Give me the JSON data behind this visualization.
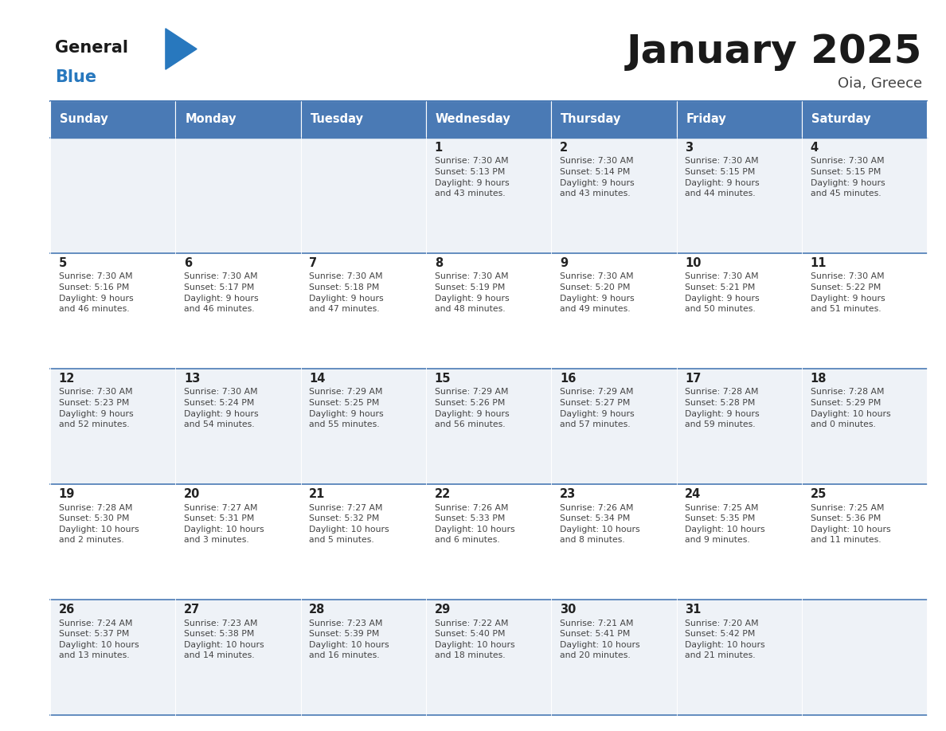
{
  "title": "January 2025",
  "subtitle": "Oia, Greece",
  "days_of_week": [
    "Sunday",
    "Monday",
    "Tuesday",
    "Wednesday",
    "Thursday",
    "Friday",
    "Saturday"
  ],
  "header_bg": "#4a7ab5",
  "header_text": "#ffffff",
  "cell_bg_odd": "#eef2f7",
  "cell_bg_even": "#ffffff",
  "border_color": "#4a7ab5",
  "title_color": "#1a1a1a",
  "subtitle_color": "#444444",
  "day_num_color": "#222222",
  "cell_text_color": "#444444",
  "logo_black": "#1a1a1a",
  "logo_blue": "#2878be",
  "triangle_color": "#2878be",
  "weeks": [
    [
      {
        "day": null,
        "info": null
      },
      {
        "day": null,
        "info": null
      },
      {
        "day": null,
        "info": null
      },
      {
        "day": 1,
        "info": "Sunrise: 7:30 AM\nSunset: 5:13 PM\nDaylight: 9 hours\nand 43 minutes."
      },
      {
        "day": 2,
        "info": "Sunrise: 7:30 AM\nSunset: 5:14 PM\nDaylight: 9 hours\nand 43 minutes."
      },
      {
        "day": 3,
        "info": "Sunrise: 7:30 AM\nSunset: 5:15 PM\nDaylight: 9 hours\nand 44 minutes."
      },
      {
        "day": 4,
        "info": "Sunrise: 7:30 AM\nSunset: 5:15 PM\nDaylight: 9 hours\nand 45 minutes."
      }
    ],
    [
      {
        "day": 5,
        "info": "Sunrise: 7:30 AM\nSunset: 5:16 PM\nDaylight: 9 hours\nand 46 minutes."
      },
      {
        "day": 6,
        "info": "Sunrise: 7:30 AM\nSunset: 5:17 PM\nDaylight: 9 hours\nand 46 minutes."
      },
      {
        "day": 7,
        "info": "Sunrise: 7:30 AM\nSunset: 5:18 PM\nDaylight: 9 hours\nand 47 minutes."
      },
      {
        "day": 8,
        "info": "Sunrise: 7:30 AM\nSunset: 5:19 PM\nDaylight: 9 hours\nand 48 minutes."
      },
      {
        "day": 9,
        "info": "Sunrise: 7:30 AM\nSunset: 5:20 PM\nDaylight: 9 hours\nand 49 minutes."
      },
      {
        "day": 10,
        "info": "Sunrise: 7:30 AM\nSunset: 5:21 PM\nDaylight: 9 hours\nand 50 minutes."
      },
      {
        "day": 11,
        "info": "Sunrise: 7:30 AM\nSunset: 5:22 PM\nDaylight: 9 hours\nand 51 minutes."
      }
    ],
    [
      {
        "day": 12,
        "info": "Sunrise: 7:30 AM\nSunset: 5:23 PM\nDaylight: 9 hours\nand 52 minutes."
      },
      {
        "day": 13,
        "info": "Sunrise: 7:30 AM\nSunset: 5:24 PM\nDaylight: 9 hours\nand 54 minutes."
      },
      {
        "day": 14,
        "info": "Sunrise: 7:29 AM\nSunset: 5:25 PM\nDaylight: 9 hours\nand 55 minutes."
      },
      {
        "day": 15,
        "info": "Sunrise: 7:29 AM\nSunset: 5:26 PM\nDaylight: 9 hours\nand 56 minutes."
      },
      {
        "day": 16,
        "info": "Sunrise: 7:29 AM\nSunset: 5:27 PM\nDaylight: 9 hours\nand 57 minutes."
      },
      {
        "day": 17,
        "info": "Sunrise: 7:28 AM\nSunset: 5:28 PM\nDaylight: 9 hours\nand 59 minutes."
      },
      {
        "day": 18,
        "info": "Sunrise: 7:28 AM\nSunset: 5:29 PM\nDaylight: 10 hours\nand 0 minutes."
      }
    ],
    [
      {
        "day": 19,
        "info": "Sunrise: 7:28 AM\nSunset: 5:30 PM\nDaylight: 10 hours\nand 2 minutes."
      },
      {
        "day": 20,
        "info": "Sunrise: 7:27 AM\nSunset: 5:31 PM\nDaylight: 10 hours\nand 3 minutes."
      },
      {
        "day": 21,
        "info": "Sunrise: 7:27 AM\nSunset: 5:32 PM\nDaylight: 10 hours\nand 5 minutes."
      },
      {
        "day": 22,
        "info": "Sunrise: 7:26 AM\nSunset: 5:33 PM\nDaylight: 10 hours\nand 6 minutes."
      },
      {
        "day": 23,
        "info": "Sunrise: 7:26 AM\nSunset: 5:34 PM\nDaylight: 10 hours\nand 8 minutes."
      },
      {
        "day": 24,
        "info": "Sunrise: 7:25 AM\nSunset: 5:35 PM\nDaylight: 10 hours\nand 9 minutes."
      },
      {
        "day": 25,
        "info": "Sunrise: 7:25 AM\nSunset: 5:36 PM\nDaylight: 10 hours\nand 11 minutes."
      }
    ],
    [
      {
        "day": 26,
        "info": "Sunrise: 7:24 AM\nSunset: 5:37 PM\nDaylight: 10 hours\nand 13 minutes."
      },
      {
        "day": 27,
        "info": "Sunrise: 7:23 AM\nSunset: 5:38 PM\nDaylight: 10 hours\nand 14 minutes."
      },
      {
        "day": 28,
        "info": "Sunrise: 7:23 AM\nSunset: 5:39 PM\nDaylight: 10 hours\nand 16 minutes."
      },
      {
        "day": 29,
        "info": "Sunrise: 7:22 AM\nSunset: 5:40 PM\nDaylight: 10 hours\nand 18 minutes."
      },
      {
        "day": 30,
        "info": "Sunrise: 7:21 AM\nSunset: 5:41 PM\nDaylight: 10 hours\nand 20 minutes."
      },
      {
        "day": 31,
        "info": "Sunrise: 7:20 AM\nSunset: 5:42 PM\nDaylight: 10 hours\nand 21 minutes."
      },
      {
        "day": null,
        "info": null
      }
    ]
  ]
}
